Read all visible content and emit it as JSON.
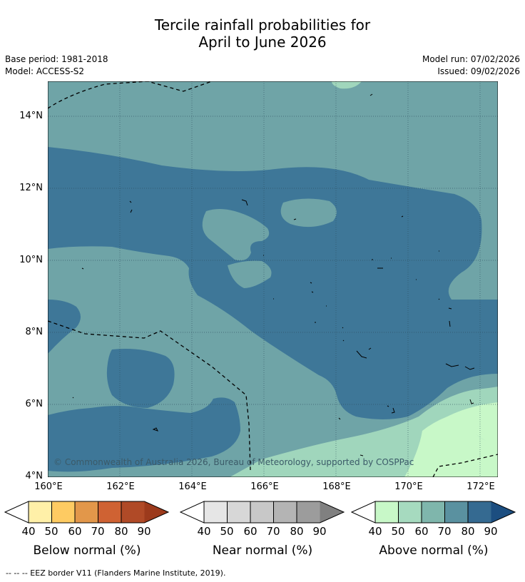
{
  "title": {
    "line1": "Tercile rainfall probabilities for",
    "line2": "April to June 2026"
  },
  "info": {
    "base_period": "Base period: 1981-2018",
    "model": "Model: ACCESS-S2",
    "model_run": "Model run: 07/02/2026",
    "issued": "Issued: 09/02/2026"
  },
  "map": {
    "lat_ticks": [
      "14°N",
      "12°N",
      "10°N",
      "8°N",
      "6°N",
      "4°N"
    ],
    "lon_ticks": [
      "160°E",
      "162°E",
      "164°E",
      "166°E",
      "168°E",
      "170°E",
      "172°E"
    ],
    "copyright": "© Commonwealth of Australia 2026, Bureau of Meteorology, supported by COSPPac",
    "colors": {
      "above_60": "#6fa4a7",
      "above_70_80": "#3e7798",
      "above_40": "#c8f8c8",
      "above_50": "#a0d6bc"
    }
  },
  "colorbars": [
    {
      "title": "Below normal (%)",
      "labels": [
        "40",
        "50",
        "60",
        "70",
        "80",
        "90"
      ],
      "colors": [
        "#fff0a8",
        "#fecb62",
        "#e2974a",
        "#cf6233",
        "#b04a27"
      ],
      "over": "#9c3a1c"
    },
    {
      "title": "Near normal (%)",
      "labels": [
        "40",
        "50",
        "60",
        "70",
        "80",
        "90"
      ],
      "colors": [
        "#e6e6e6",
        "#d7d7d7",
        "#c8c8c8",
        "#b4b4b4",
        "#9c9c9c"
      ],
      "over": "#808080"
    },
    {
      "title": "Above normal (%)",
      "labels": [
        "40",
        "50",
        "60",
        "70",
        "80",
        "90"
      ],
      "colors": [
        "#c8f8c8",
        "#a6dabf",
        "#7fb6ac",
        "#5a91a0",
        "#356a91"
      ],
      "over": "#1c4e80"
    }
  ],
  "footer": "--  --  -- EEZ border V11 (Flanders Marine Institute, 2019)."
}
